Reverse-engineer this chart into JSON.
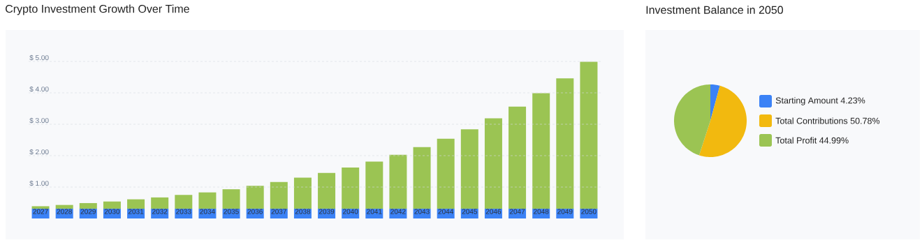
{
  "chart_data": [
    {
      "type": "bar",
      "title": "Crypto Investment Growth Over Time",
      "categories": [
        "2027",
        "2028",
        "2029",
        "2030",
        "2031",
        "2032",
        "2033",
        "2034",
        "2035",
        "2036",
        "2037",
        "2038",
        "2039",
        "2040",
        "2041",
        "2042",
        "2043",
        "2044",
        "2045",
        "2046",
        "2047",
        "2048",
        "2049",
        "2050"
      ],
      "series": [
        {
          "color": "#3b82f6",
          "values": [
            0.31,
            0.31,
            0.31,
            0.31,
            0.31,
            0.31,
            0.31,
            0.31,
            0.31,
            0.31,
            0.31,
            0.31,
            0.31,
            0.31,
            0.31,
            0.31,
            0.31,
            0.31,
            0.31,
            0.31,
            0.31,
            0.31,
            0.31,
            0.31
          ]
        },
        {
          "color": "#9bc453",
          "values": [
            0.08,
            0.12,
            0.18,
            0.23,
            0.3,
            0.36,
            0.44,
            0.52,
            0.62,
            0.73,
            0.85,
            0.99,
            1.14,
            1.31,
            1.5,
            1.72,
            1.96,
            2.23,
            2.53,
            2.88,
            3.25,
            3.68,
            4.15,
            4.68
          ]
        }
      ],
      "stacked": true,
      "ylim": [
        0,
        5
      ],
      "yticks": [
        {
          "value": 1,
          "label": "$ 1.00"
        },
        {
          "value": 2,
          "label": "$ 2.00"
        },
        {
          "value": 3,
          "label": "$ 3.00"
        },
        {
          "value": 4,
          "label": "$ 4.00"
        },
        {
          "value": 5,
          "label": "$ 5.00"
        }
      ],
      "grid": "y"
    },
    {
      "type": "pie",
      "title": "Investment Balance in 2050",
      "categories": [
        "Starting Amount",
        "Total Contributions",
        "Total Profit"
      ],
      "values": [
        4.23,
        50.78,
        44.99
      ],
      "value_labels": [
        "4.23%",
        "50.78%",
        "44.99%"
      ],
      "colors": [
        "#3b82f6",
        "#f2b90f",
        "#9bc453"
      ],
      "legend": "right"
    }
  ]
}
